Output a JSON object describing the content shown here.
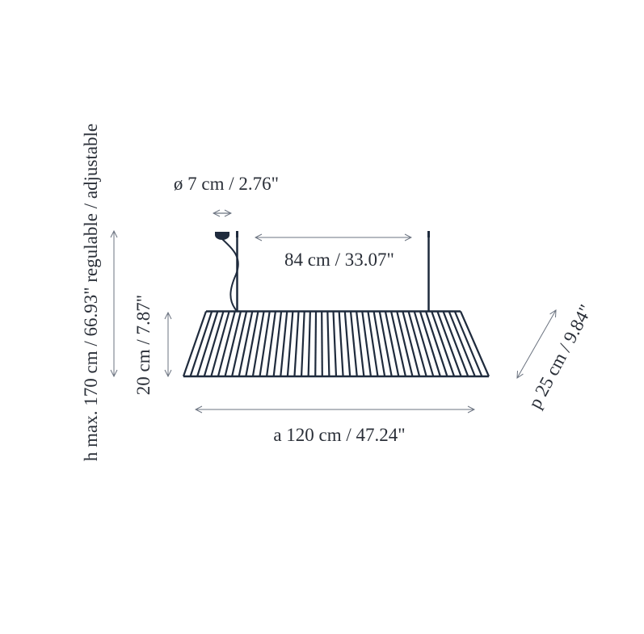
{
  "colors": {
    "line": "#1f2b3d",
    "dimension": "#6b7380",
    "text": "#2a2f38"
  },
  "labels": {
    "diameter": "ø 7 cm / 2.76\"",
    "span": "84 cm / 33.07\"",
    "shade_height": "20 cm / 7.87\"",
    "width": "a 120 cm / 47.24\"",
    "depth": "p 25 cm / 9.84\"",
    "max_height": "h max. 170 cm / 66.93\" regulable / adjustable"
  }
}
